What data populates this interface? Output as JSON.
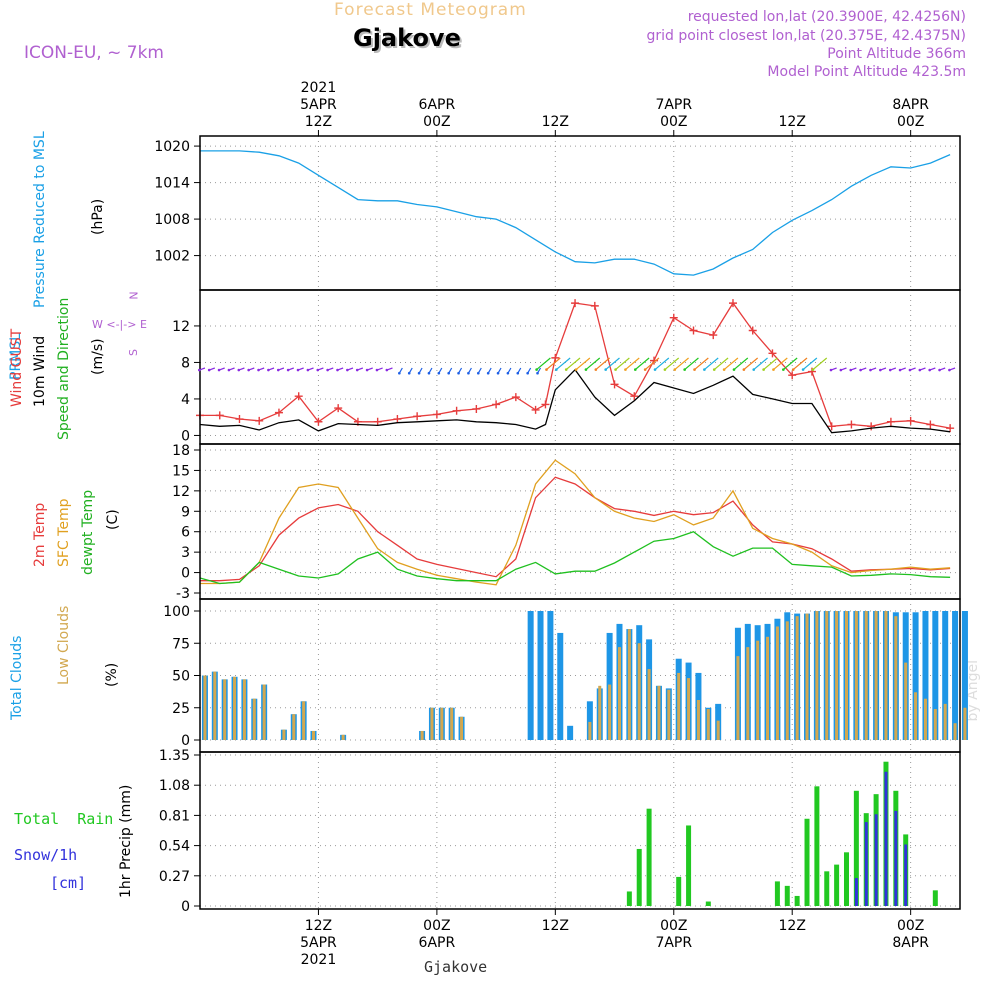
{
  "header": {
    "forecast_title": "Forecast Meteogram",
    "location": "Gjakove",
    "model": "ICON-EU, ~ 7km",
    "requested_point": "requested lon,lat (20.3900E, 42.4256N)",
    "grid_point": "grid point closest lon,lat (20.375E, 42.4375N)",
    "point_altitude": "Point Altitude 366m",
    "model_altitude": "Model Point Altitude 423.5m",
    "footer_location": "Gjakove",
    "credit": "by Angel"
  },
  "time_axis": {
    "top_labels": [
      {
        "hour": 12,
        "lines": [
          "2021",
          "5APR",
          "12Z"
        ]
      },
      {
        "hour": 24,
        "lines": [
          "6APR",
          "00Z"
        ]
      },
      {
        "hour": 36,
        "lines": [
          "12Z"
        ]
      },
      {
        "hour": 48,
        "lines": [
          "7APR",
          "00Z"
        ]
      },
      {
        "hour": 60,
        "lines": [
          "12Z"
        ]
      },
      {
        "hour": 72,
        "lines": [
          "8APR",
          "00Z"
        ]
      }
    ],
    "bottom_labels": [
      {
        "hour": 12,
        "lines": [
          "12Z",
          "5APR",
          "2021"
        ]
      },
      {
        "hour": 24,
        "lines": [
          "00Z",
          "6APR"
        ]
      },
      {
        "hour": 36,
        "lines": [
          "12Z"
        ]
      },
      {
        "hour": 48,
        "lines": [
          "00Z",
          "7APR"
        ]
      },
      {
        "hour": 60,
        "lines": [
          "12Z"
        ]
      },
      {
        "hour": 72,
        "lines": [
          "00Z",
          "8APR"
        ]
      }
    ],
    "range_hours": [
      0,
      77
    ]
  },
  "panel_labels": {
    "pressure": {
      "name": "PRMSL",
      "desc": "Pressure Reduced to MSL",
      "unit": "(hPa)"
    },
    "wind": {
      "gust": "Wind GUST",
      "wind10": "10m Wind",
      "speed": "Speed and Direction",
      "unit": "(m/s)",
      "compass": "W <-|-> E",
      "n": "N",
      "s": "S"
    },
    "temp": {
      "t2m": "2m Temp",
      "sfc": "SFC Temp",
      "dewpt": "dewpt Temp",
      "unit": "(C)"
    },
    "clouds": {
      "total": "Total Clouds",
      "low": "Low Clouds",
      "unit": "(%)"
    },
    "precip": {
      "rain": "Total  Rain",
      "snow": "Snow/1h",
      "snow_unit": "[cm]",
      "axis": "1hr Precip (mm)"
    }
  },
  "chart_data": [
    {
      "type": "line",
      "panel": "pressure",
      "ylabel": "(hPa)",
      "ylim": [
        997,
        1021
      ],
      "yticks": [
        1002,
        1008,
        1014,
        1020
      ],
      "series": [
        {
          "name": "PRMSL",
          "color": "#1aa0e6",
          "x": [
            0,
            2,
            4,
            6,
            8,
            10,
            12,
            14,
            16,
            18,
            20,
            22,
            24,
            26,
            28,
            30,
            32,
            34,
            36,
            38,
            40,
            42,
            44,
            46,
            48,
            50,
            52,
            54,
            56,
            58,
            60,
            62,
            64,
            66,
            68,
            70,
            72,
            74,
            76
          ],
          "values": [
            1019.2,
            1019.2,
            1019.2,
            1019.0,
            1018.4,
            1017.2,
            1015.2,
            1013.2,
            1011.2,
            1011.0,
            1011.0,
            1010.4,
            1010.0,
            1009.2,
            1008.4,
            1008.0,
            1006.6,
            1004.6,
            1002.6,
            1001.0,
            1000.8,
            1001.4,
            1001.4,
            1000.6,
            999.0,
            998.8,
            999.8,
            1001.6,
            1003.0,
            1005.8,
            1007.8,
            1009.4,
            1011.2,
            1013.4,
            1015.2,
            1016.6,
            1016.4,
            1017.2,
            1018.6
          ]
        }
      ]
    },
    {
      "type": "line",
      "panel": "wind",
      "ylabel": "(m/s)",
      "ylim": [
        -0.5,
        15.5
      ],
      "yticks": [
        0,
        4,
        8,
        12
      ],
      "series": [
        {
          "name": "Wind GUST",
          "color": "#e63c3c",
          "x": [
            0,
            2,
            4,
            6,
            8,
            10,
            12,
            14,
            16,
            18,
            20,
            22,
            24,
            26,
            28,
            30,
            32,
            34,
            35,
            36,
            38,
            40,
            42,
            44,
            46,
            48,
            50,
            52,
            54,
            56,
            58,
            60,
            62,
            64,
            66,
            68,
            70,
            72,
            74,
            76
          ],
          "values": [
            2.2,
            2.2,
            1.8,
            1.6,
            2.5,
            4.3,
            1.5,
            3.0,
            1.5,
            1.5,
            1.8,
            2.1,
            2.3,
            2.7,
            2.9,
            3.4,
            4.2,
            2.8,
            3.4,
            8.5,
            14.5,
            14.2,
            5.6,
            4.3,
            8.2,
            12.9,
            11.5,
            11.0,
            14.5,
            11.5,
            9.0,
            6.6,
            7.0,
            1.0,
            1.2,
            1.0,
            1.5,
            1.6,
            1.2,
            0.8
          ]
        },
        {
          "name": "10m Wind",
          "color": "#000000",
          "x": [
            0,
            2,
            4,
            6,
            8,
            10,
            12,
            14,
            16,
            18,
            20,
            22,
            24,
            26,
            28,
            30,
            32,
            34,
            35,
            36,
            38,
            40,
            42,
            44,
            46,
            48,
            50,
            52,
            54,
            56,
            58,
            60,
            62,
            64,
            66,
            68,
            70,
            72,
            74,
            76
          ],
          "values": [
            1.2,
            1.0,
            1.1,
            0.6,
            1.4,
            1.7,
            0.5,
            1.3,
            1.2,
            1.1,
            1.4,
            1.5,
            1.6,
            1.7,
            1.5,
            1.4,
            1.2,
            0.7,
            1.2,
            5.0,
            7.2,
            4.2,
            2.2,
            3.8,
            5.8,
            5.2,
            4.6,
            5.5,
            6.5,
            4.5,
            4.0,
            3.5,
            3.5,
            0.3,
            0.5,
            0.8,
            1.0,
            0.8,
            0.7,
            0.4
          ]
        }
      ]
    },
    {
      "type": "line",
      "panel": "temperature",
      "ylabel": "(C)",
      "ylim": [
        -3,
        18
      ],
      "yticks": [
        -3,
        0,
        3,
        6,
        9,
        12,
        15,
        18
      ],
      "series": [
        {
          "name": "2m Temp",
          "color": "#e63c3c",
          "x": [
            0,
            2,
            4,
            6,
            8,
            10,
            12,
            14,
            16,
            18,
            20,
            22,
            24,
            26,
            28,
            30,
            32,
            34,
            36,
            38,
            40,
            42,
            44,
            46,
            48,
            50,
            52,
            54,
            56,
            58,
            60,
            62,
            64,
            66,
            68,
            70,
            72,
            74,
            76
          ],
          "values": [
            -1.2,
            -1.2,
            -1.0,
            1.0,
            5.5,
            8.0,
            9.5,
            10.0,
            9.0,
            6.0,
            4.0,
            2.0,
            1.2,
            0.6,
            0.0,
            -0.6,
            2.0,
            11.0,
            14.0,
            13.0,
            11.0,
            9.4,
            9.0,
            8.4,
            9.0,
            8.5,
            8.8,
            10.5,
            7.0,
            4.5,
            4.2,
            3.5,
            2.0,
            0.2,
            0.4,
            0.5,
            0.6,
            0.4,
            0.6
          ]
        },
        {
          "name": "SFC Temp",
          "color": "#e0a020",
          "x": [
            0,
            2,
            4,
            6,
            8,
            10,
            12,
            14,
            16,
            18,
            20,
            22,
            24,
            26,
            28,
            30,
            32,
            34,
            36,
            38,
            40,
            42,
            44,
            46,
            48,
            50,
            52,
            54,
            56,
            58,
            60,
            62,
            64,
            66,
            68,
            70,
            72,
            74,
            76
          ],
          "values": [
            -1.6,
            -1.6,
            -1.4,
            1.5,
            8.0,
            12.5,
            13.0,
            12.5,
            8.0,
            3.5,
            1.5,
            0.5,
            -0.4,
            -0.9,
            -1.4,
            -1.8,
            4.0,
            13.0,
            16.5,
            14.5,
            11.0,
            9.0,
            8.0,
            7.5,
            8.5,
            7.0,
            8.0,
            12.0,
            6.5,
            5.0,
            4.2,
            3.0,
            1.0,
            0.0,
            0.3,
            0.5,
            0.8,
            0.5,
            0.7
          ]
        },
        {
          "name": "dewpt Temp",
          "color": "#20c020",
          "x": [
            0,
            2,
            4,
            6,
            8,
            10,
            12,
            14,
            16,
            18,
            20,
            22,
            24,
            26,
            28,
            30,
            32,
            34,
            36,
            38,
            40,
            42,
            44,
            46,
            48,
            50,
            52,
            54,
            56,
            58,
            60,
            62,
            64,
            66,
            68,
            70,
            72,
            74,
            76
          ],
          "values": [
            -0.8,
            -1.6,
            -1.4,
            1.5,
            0.5,
            -0.5,
            -0.8,
            -0.2,
            2.0,
            3.0,
            0.5,
            -0.5,
            -0.9,
            -1.2,
            -1.2,
            -1.2,
            0.5,
            1.5,
            -0.2,
            0.2,
            0.2,
            1.4,
            3.0,
            4.6,
            5.0,
            6.0,
            3.8,
            2.4,
            3.6,
            3.6,
            1.2,
            1.0,
            0.8,
            -0.5,
            -0.4,
            -0.2,
            -0.3,
            -0.6,
            -0.7
          ]
        }
      ]
    },
    {
      "type": "bar",
      "panel": "clouds",
      "ylabel": "(%)",
      "ylim": [
        0,
        100
      ],
      "yticks": [
        0,
        25,
        50,
        75,
        100
      ],
      "series": [
        {
          "name": "Total Clouds",
          "color": "#1e96e6",
          "x": [
            0,
            1,
            2,
            3,
            4,
            5,
            6,
            8,
            9,
            10,
            11,
            14,
            22,
            23,
            24,
            25,
            26,
            33,
            34,
            35,
            36,
            37,
            39,
            40,
            41,
            42,
            43,
            44,
            45,
            46,
            47,
            48,
            49,
            50,
            51,
            52,
            54,
            55,
            56,
            57,
            58,
            59,
            60,
            61,
            62,
            63,
            64,
            65,
            66,
            67,
            68,
            69,
            70,
            71,
            72,
            73,
            74,
            75,
            76,
            77
          ],
          "values": [
            50,
            53,
            47,
            49,
            47,
            32,
            43,
            8,
            20,
            30,
            7,
            4,
            7,
            25,
            25,
            25,
            18,
            100,
            100,
            100,
            83,
            11,
            30,
            40,
            83,
            90,
            86,
            89,
            78,
            42,
            40,
            63,
            60,
            52,
            25,
            28,
            87,
            90,
            89,
            90,
            94,
            99,
            98,
            98,
            100,
            100,
            100,
            100,
            100,
            100,
            100,
            100,
            99,
            99,
            99,
            100,
            100,
            100,
            100,
            100
          ]
        },
        {
          "name": "Low Clouds",
          "color": "#d2a850",
          "x": [
            0,
            1,
            2,
            3,
            4,
            5,
            6,
            8,
            9,
            10,
            11,
            14,
            22,
            23,
            24,
            25,
            26,
            39,
            40,
            41,
            42,
            43,
            44,
            45,
            46,
            47,
            48,
            49,
            50,
            51,
            52,
            54,
            55,
            56,
            57,
            58,
            59,
            60,
            61,
            62,
            63,
            64,
            65,
            66,
            67,
            68,
            69,
            70,
            71,
            72,
            73,
            74,
            75,
            76,
            77
          ],
          "values": [
            50,
            53,
            47,
            49,
            47,
            32,
            43,
            8,
            20,
            30,
            7,
            4,
            7,
            25,
            25,
            25,
            18,
            14,
            42,
            43,
            72,
            86,
            75,
            55,
            42,
            39,
            52,
            48,
            31,
            24,
            15,
            65,
            72,
            77,
            80,
            88,
            92,
            96,
            98,
            100,
            100,
            100,
            100,
            100,
            100,
            100,
            100,
            96,
            60,
            37,
            32,
            24,
            28,
            13,
            25
          ]
        }
      ]
    },
    {
      "type": "bar",
      "panel": "precip",
      "ylabel": "1hr Precip (mm)",
      "ylim": [
        0,
        1.35
      ],
      "yticks": [
        0,
        0.27,
        0.54,
        0.81,
        1.08,
        1.35
      ],
      "series": [
        {
          "name": "Total Rain",
          "color": "#21c821",
          "x": [
            43,
            44,
            45,
            48,
            49,
            51,
            58,
            59,
            60,
            61,
            62,
            63,
            64,
            65,
            66,
            67,
            68,
            69,
            70,
            71,
            74
          ],
          "values": [
            0.13,
            0.51,
            0.87,
            0.26,
            0.72,
            0.04,
            0.22,
            0.18,
            0.09,
            0.78,
            1.07,
            0.31,
            0.37,
            0.48,
            1.03,
            0.83,
            1.0,
            1.29,
            1.03,
            0.64,
            0.14
          ]
        },
        {
          "name": "Snow/1h",
          "color": "#3232dc",
          "x": [
            66,
            67,
            68,
            69,
            70,
            71
          ],
          "values": [
            0.25,
            0.75,
            0.82,
            1.2,
            0.85,
            0.55
          ]
        }
      ]
    }
  ]
}
